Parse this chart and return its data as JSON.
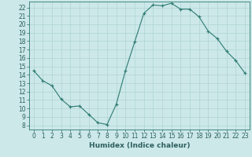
{
  "x": [
    0,
    1,
    2,
    3,
    4,
    5,
    6,
    7,
    8,
    9,
    10,
    11,
    12,
    13,
    14,
    15,
    16,
    17,
    18,
    19,
    20,
    21,
    22,
    23
  ],
  "y": [
    14.5,
    13.3,
    12.7,
    11.1,
    10.2,
    10.3,
    9.3,
    8.3,
    8.1,
    10.5,
    14.5,
    17.9,
    21.3,
    22.3,
    22.2,
    22.5,
    21.8,
    21.8,
    20.9,
    19.2,
    18.3,
    16.8,
    15.7,
    14.2
  ],
  "line_color": "#2d7a72",
  "marker": "+",
  "marker_size": 3.5,
  "marker_lw": 0.8,
  "bg_color": "#cce8e8",
  "grid_color": "#b0d4d4",
  "xlabel": "Humidex (Indice chaleur)",
  "xlim": [
    -0.5,
    23.5
  ],
  "ylim": [
    7.5,
    22.7
  ],
  "xticks": [
    0,
    1,
    2,
    3,
    4,
    5,
    6,
    7,
    8,
    9,
    10,
    11,
    12,
    13,
    14,
    15,
    16,
    17,
    18,
    19,
    20,
    21,
    22,
    23
  ],
  "yticks": [
    8,
    9,
    10,
    11,
    12,
    13,
    14,
    15,
    16,
    17,
    18,
    19,
    20,
    21,
    22
  ],
  "xlabel_fontsize": 6.5,
  "tick_fontsize": 5.5
}
